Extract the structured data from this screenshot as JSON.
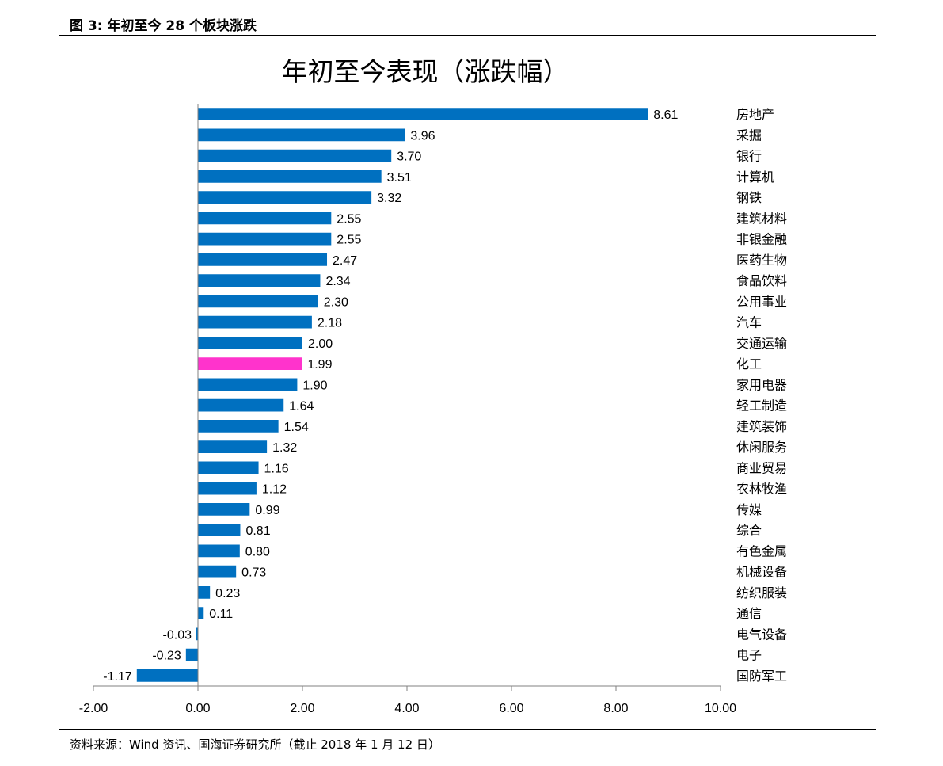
{
  "figure_caption": "图 3:  年初至今 28 个板块涨跌",
  "source_note": "资料来源：Wind 资讯、国海证券研究所（截止 2018 年 1 月 12 日）",
  "colors": {
    "bar": "#0070c0",
    "highlight": "#ff33cc",
    "axis": "#808080"
  },
  "chart_data": {
    "type": "bar",
    "orientation": "horizontal",
    "title": "年初至今表现（涨跌幅）",
    "xlabel": "",
    "ylabel": "",
    "xlim": [
      -2,
      10
    ],
    "xticks": [
      -2,
      0,
      2,
      4,
      6,
      8,
      10
    ],
    "xtick_labels": [
      "-2.00",
      "0.00",
      "2.00",
      "4.00",
      "6.00",
      "8.00",
      "10.00"
    ],
    "grid": false,
    "legend": "none",
    "highlight_category": "化工",
    "categories": [
      "房地产",
      "采掘",
      "银行",
      "计算机",
      "钢铁",
      "建筑材料",
      "非银金融",
      "医药生物",
      "食品饮料",
      "公用事业",
      "汽车",
      "交通运输",
      "化工",
      "家用电器",
      "轻工制造",
      "建筑装饰",
      "休闲服务",
      "商业贸易",
      "农林牧渔",
      "传媒",
      "综合",
      "有色金属",
      "机械设备",
      "纺织服装",
      "通信",
      "电气设备",
      "电子",
      "国防军工"
    ],
    "values": [
      8.61,
      3.96,
      3.7,
      3.51,
      3.32,
      2.55,
      2.55,
      2.47,
      2.34,
      2.3,
      2.18,
      2.0,
      1.99,
      1.9,
      1.64,
      1.54,
      1.32,
      1.16,
      1.12,
      0.99,
      0.81,
      0.8,
      0.73,
      0.23,
      0.11,
      -0.03,
      -0.23,
      -1.17
    ],
    "value_labels": [
      "8.61",
      "3.96",
      "3.70",
      "3.51",
      "3.32",
      "2.55",
      "2.55",
      "2.47",
      "2.34",
      "2.30",
      "2.18",
      "2.00",
      "1.99",
      "1.90",
      "1.64",
      "1.54",
      "1.32",
      "1.16",
      "1.12",
      "0.99",
      "0.81",
      "0.80",
      "0.73",
      "0.23",
      "0.11",
      "-0.03",
      "-0.23",
      "-1.17"
    ]
  }
}
